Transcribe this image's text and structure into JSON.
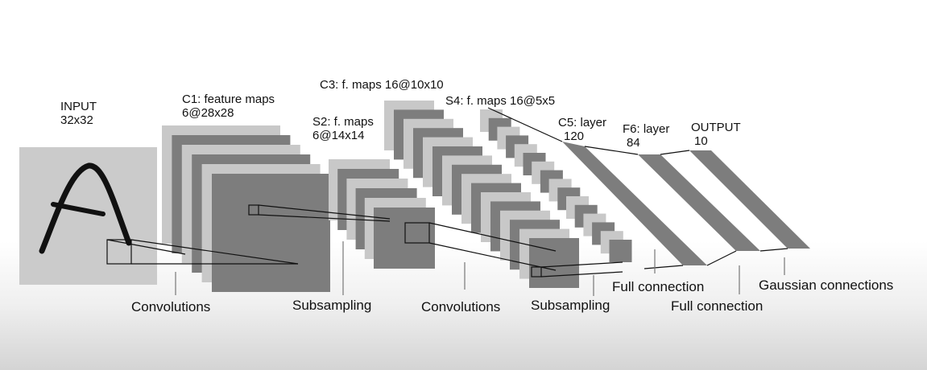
{
  "layers": {
    "input": {
      "title": "INPUT",
      "size": "32x32"
    },
    "c1": {
      "title": "C1: feature maps",
      "size": "6@28x28"
    },
    "s2": {
      "title": "S2: f. maps",
      "size": "6@14x14"
    },
    "c3": {
      "title": "C3: f. maps 16@10x10"
    },
    "s4": {
      "title": "S4: f. maps 16@5x5"
    },
    "c5": {
      "title": "C5: layer",
      "size": "120"
    },
    "f6": {
      "title": "F6: layer",
      "size": "84"
    },
    "output": {
      "title": "OUTPUT",
      "size": "10"
    }
  },
  "operations": {
    "conv1": "Convolutions",
    "sub1": "Subsampling",
    "conv2": "Convolutions",
    "sub2": "Subsampling",
    "full1": "Full connection",
    "full2": "Full connection",
    "gauss": "Gaussian connections"
  },
  "colors": {
    "light_map": "#c8c8c8",
    "dark_map": "#7d7d7d",
    "input_bg": "#cbcbcb",
    "stroke": "#111111"
  }
}
